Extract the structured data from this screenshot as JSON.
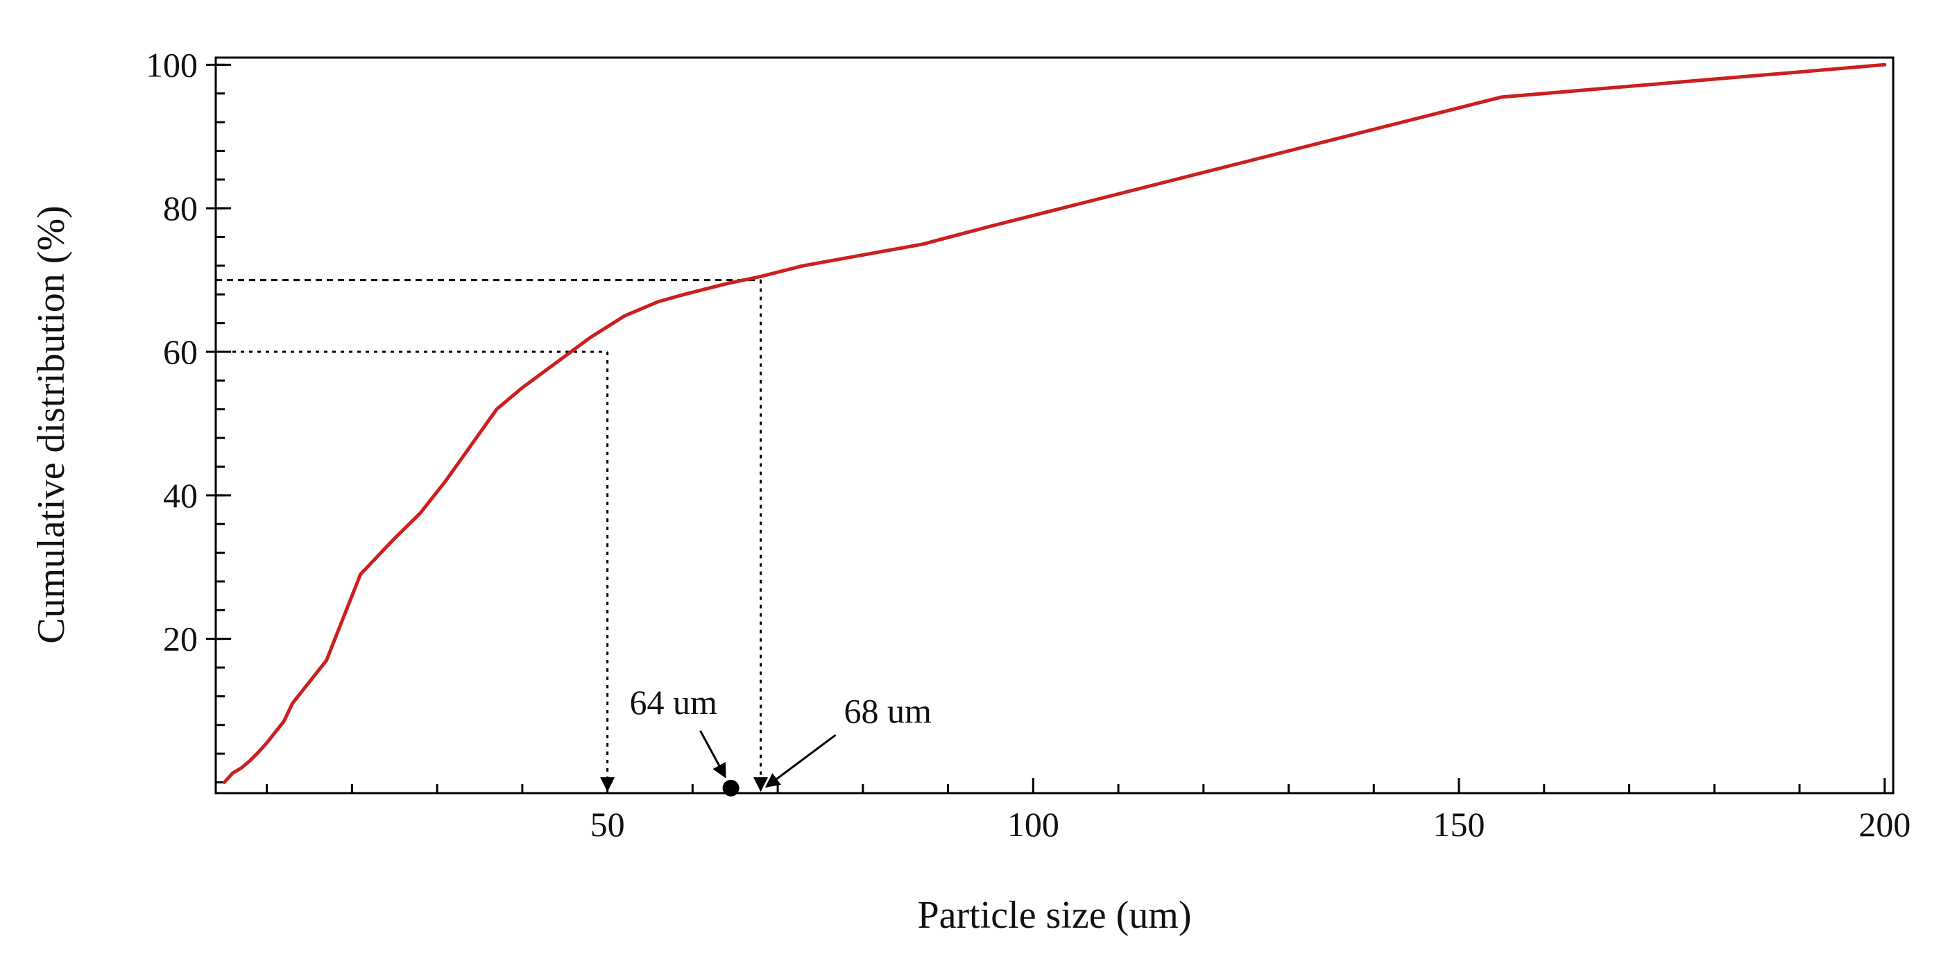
{
  "chart_data": {
    "type": "line",
    "title": "",
    "xlabel": "Particle size (um)",
    "ylabel": "Cumulative distribution (%)",
    "xlim": [
      4,
      201
    ],
    "ylim": [
      -1.5,
      101
    ],
    "xticks": [
      50,
      100,
      150,
      200
    ],
    "yticks": [
      20,
      40,
      60,
      80,
      100
    ],
    "x_minor_step": 10,
    "y_minor_step": 4,
    "grid": false,
    "legend": "none",
    "series": [
      {
        "color": "#cc1f1f",
        "x": [
          5,
          6,
          7,
          8,
          9,
          10,
          11,
          12,
          13,
          15,
          17,
          19,
          21,
          23,
          25,
          28,
          31,
          34,
          37,
          40,
          44,
          48,
          52,
          56,
          59,
          64,
          68,
          73,
          80,
          87,
          95,
          105,
          115,
          125,
          135,
          145,
          155,
          160,
          170,
          180,
          190,
          200
        ],
        "y": [
          0,
          1.3,
          2,
          3,
          4.2,
          5.5,
          7,
          8.5,
          11,
          14,
          17,
          23,
          29,
          31.5,
          34,
          37.5,
          42,
          47,
          52,
          55,
          58.5,
          62,
          65,
          67,
          68,
          69.5,
          70.5,
          72,
          73.5,
          75,
          77.5,
          80.5,
          83.5,
          86.5,
          89.5,
          92.5,
          95.5,
          96,
          97,
          98,
          99,
          100
        ]
      }
    ],
    "guides": [
      {
        "y": 60,
        "x": 50,
        "style": "dotted"
      },
      {
        "y": 70,
        "x": 68,
        "style": "dashed"
      }
    ],
    "annotations": [
      {
        "text": "64 um",
        "x": 64
      },
      {
        "text": "68 um",
        "x": 68
      }
    ],
    "marker_point": {
      "x": 64.5,
      "y": -0.8
    }
  }
}
